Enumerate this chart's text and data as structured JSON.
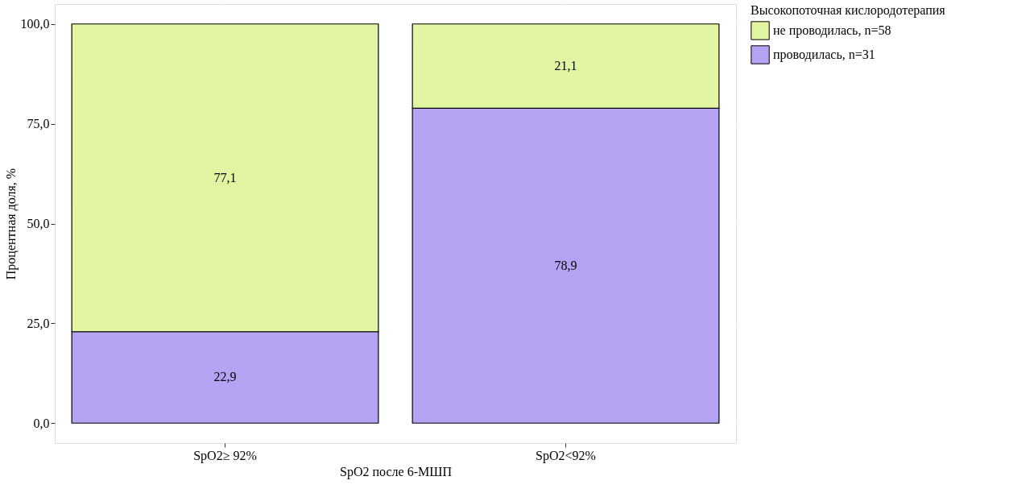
{
  "chart_data": {
    "type": "bar",
    "stacked": true,
    "categories": [
      "SpO2≥ 92%",
      "SpO2<92%"
    ],
    "xlabel": "SpO2 после 6-МШП",
    "ylabel": "Процентная доля, %",
    "legend_title": "Высокопоточная кислородотерапия",
    "series": [
      {
        "name": "проводилась, n=31",
        "color": "#b3a3f2",
        "values": [
          22.9,
          78.9
        ],
        "value_labels": [
          "22,9",
          "78,9"
        ]
      },
      {
        "name": "не проводилась, n=58",
        "color": "#e2f5a3",
        "values": [
          77.1,
          21.1
        ],
        "value_labels": [
          "77,1",
          "21,1"
        ]
      }
    ],
    "ylim": [
      -5,
      105
    ],
    "yticks": [
      {
        "value": 0,
        "label": "0,0"
      },
      {
        "value": 25,
        "label": "25,0"
      },
      {
        "value": 50,
        "label": "50,0"
      },
      {
        "value": 75,
        "label": "75,0"
      },
      {
        "value": 100,
        "label": "100,0"
      }
    ],
    "grid": true,
    "legend": "right"
  }
}
